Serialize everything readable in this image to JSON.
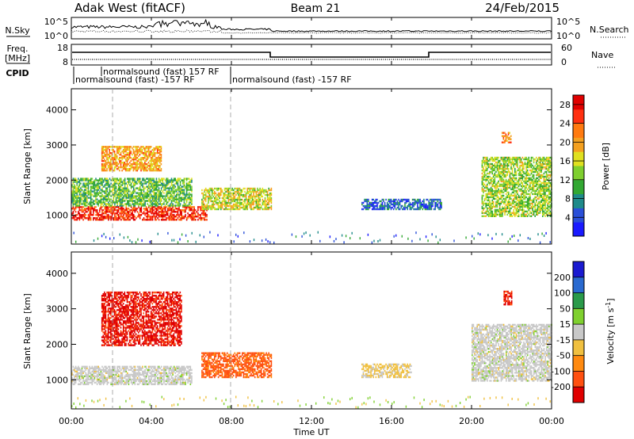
{
  "header": {
    "title": "Adak West (fitACF)",
    "beam": "Beam 21",
    "date": "24/Feb/2015"
  },
  "noise_panel": {
    "left_label": "N.Sky",
    "right_label": "N.Search",
    "left_ticks": [
      "10^5",
      "10^0"
    ],
    "right_ticks": [
      "10^5",
      "10^0"
    ]
  },
  "freq_panel": {
    "left_label_line1": "Freq.",
    "left_label_line2": "[MHz]",
    "left_ticks": [
      "18",
      "8"
    ],
    "right_label": "Nave",
    "right_ticks": [
      "60",
      "0"
    ],
    "cpid_label": "CPID",
    "cpid_entries": [
      {
        "text": "normalsound (fast) -157 RF",
        "row": "lower"
      },
      {
        "text": "normalsound (fast) 157 RF",
        "row": "upper"
      },
      {
        "text": "normalsound (fast) -157 RF",
        "row": "lower"
      }
    ]
  },
  "time_axis": {
    "label": "Time UT",
    "ticks": [
      "00:00",
      "04:00",
      "08:00",
      "12:00",
      "16:00",
      "20:00",
      "00:00"
    ]
  },
  "chart_data": [
    {
      "type": "heatmap",
      "parameter": "power",
      "ylabel": "Slant Range [km]",
      "y_ticks": [
        1000,
        2000,
        3000,
        4000
      ],
      "ylim": [
        180,
        4600
      ],
      "xlim_hours": [
        0,
        24
      ],
      "colorbar": {
        "label": "Power [dB]",
        "ticks": [
          4,
          8,
          12,
          16,
          20,
          24,
          28
        ],
        "range": [
          0,
          30
        ],
        "colors": [
          "#1a1aff",
          "#2a4fd8",
          "#1f8a8a",
          "#33a833",
          "#7fcf2f",
          "#e0e020",
          "#f4a020",
          "#ff7a10",
          "#ff3010",
          "#e00000"
        ]
      },
      "regions": [
        {
          "t0": 0.0,
          "t1": 6.8,
          "r0": 900,
          "r1": 1300,
          "level": 26
        },
        {
          "t0": 0.0,
          "t1": 6.0,
          "r0": 1300,
          "r1": 2100,
          "level": 12
        },
        {
          "t0": 1.5,
          "t1": 4.5,
          "r0": 2300,
          "r1": 3000,
          "level": 20
        },
        {
          "t0": 6.5,
          "t1": 10.0,
          "r0": 1200,
          "r1": 1800,
          "level": 16
        },
        {
          "t0": 14.5,
          "t1": 18.5,
          "r0": 1200,
          "r1": 1500,
          "level": 6
        },
        {
          "t0": 20.5,
          "t1": 24.0,
          "r0": 1000,
          "r1": 2700,
          "level": 14
        },
        {
          "t0": 21.5,
          "t1": 22.0,
          "r0": 3100,
          "r1": 3400,
          "level": 22
        }
      ]
    },
    {
      "type": "heatmap",
      "parameter": "velocity",
      "ylabel": "Slant Range [km]",
      "y_ticks": [
        1000,
        2000,
        3000,
        4000
      ],
      "ylim": [
        180,
        4600
      ],
      "xlim_hours": [
        0,
        24
      ],
      "colorbar": {
        "label": "Velocity [m s^-1]",
        "ticks": [
          200,
          100,
          50,
          15,
          -15,
          -50,
          -100,
          -200
        ],
        "colors": [
          "#1a1ad0",
          "#2a6ad0",
          "#2a9a4a",
          "#7fd02f",
          "#c8c8c8",
          "#f0c040",
          "#ff8a10",
          "#ff5010",
          "#e00000"
        ]
      },
      "regions": [
        {
          "t0": 0.0,
          "t1": 6.0,
          "r0": 900,
          "r1": 1400,
          "class": "ground"
        },
        {
          "t0": 1.5,
          "t1": 5.5,
          "r0": 2000,
          "r1": 3500,
          "class": "-200"
        },
        {
          "t0": 6.5,
          "t1": 10.0,
          "r0": 1100,
          "r1": 1800,
          "class": "-100"
        },
        {
          "t0": 14.5,
          "t1": 17.0,
          "r0": 1100,
          "r1": 1500,
          "class": "-50"
        },
        {
          "t0": 20.0,
          "t1": 24.0,
          "r0": 1000,
          "r1": 2600,
          "class": "ground"
        },
        {
          "t0": 21.6,
          "t1": 22.0,
          "r0": 3150,
          "r1": 3550,
          "class": "-200"
        }
      ]
    }
  ]
}
